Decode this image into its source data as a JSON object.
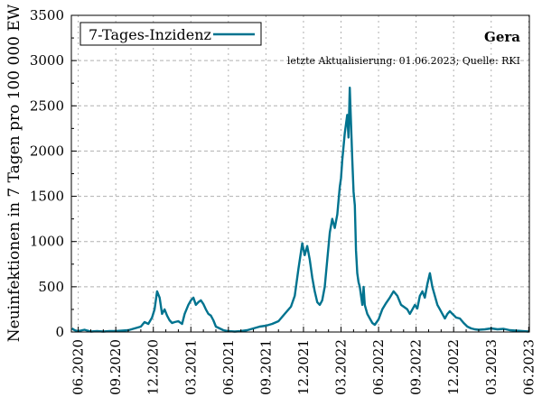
{
  "colors": {
    "series": "#00738f",
    "grid": "#b0b0b0",
    "axis": "#000000"
  },
  "chart_data": {
    "type": "line",
    "title": "Gera",
    "subtitle": "letzte Aktualisierung: 01.06.2023; Quelle: RKI",
    "xlabel": "",
    "ylabel": "Neuinfektionen in 7 Tagen pro 100 000 EW",
    "ylim": [
      0,
      3500
    ],
    "yticks": [
      0,
      500,
      1000,
      1500,
      2000,
      2500,
      3000,
      3500
    ],
    "xlim": [
      -0.55,
      36.05
    ],
    "xtick_labels": [
      "06.2020",
      "09.2020",
      "12.2020",
      "03.2021",
      "06.2021",
      "09.2021",
      "12.2021",
      "03.2022",
      "06.2022",
      "09.2022",
      "12.2022",
      "03.2023",
      "06.2023"
    ],
    "xtick_positions": [
      0,
      3,
      6,
      9,
      12,
      15,
      18,
      21,
      24,
      27,
      30,
      33,
      36
    ],
    "x_unit": "months since 06.2020",
    "legend": {
      "position": "top-left",
      "entries": [
        "7-Tages-Inzidenz"
      ]
    },
    "grid": true,
    "series": [
      {
        "name": "7-Tages-Inzidenz",
        "x": [
          -0.5,
          -0.3,
          0,
          0.5,
          1,
          1.5,
          2,
          2.5,
          3,
          3.5,
          4,
          4.5,
          5,
          5.3,
          5.6,
          5.9,
          6.1,
          6.3,
          6.5,
          6.7,
          6.9,
          7.1,
          7.3,
          7.5,
          7.7,
          8.0,
          8.3,
          8.5,
          8.8,
          9.0,
          9.2,
          9.4,
          9.6,
          9.8,
          10.0,
          10.2,
          10.4,
          10.6,
          10.8,
          11.0,
          11.3,
          11.6,
          12.0,
          12.5,
          13.0,
          13.5,
          14.0,
          14.5,
          15.0,
          15.5,
          16.0,
          16.5,
          17.0,
          17.3,
          17.6,
          17.9,
          18.1,
          18.3,
          18.5,
          18.7,
          18.9,
          19.1,
          19.3,
          19.5,
          19.7,
          19.9,
          20.1,
          20.3,
          20.5,
          20.7,
          20.9,
          21.0,
          21.1,
          21.3,
          21.5,
          21.6,
          21.7,
          21.8,
          21.9,
          22.0,
          22.1,
          22.2,
          22.3,
          22.4,
          22.5,
          22.6,
          22.7,
          22.8,
          22.9,
          23.0,
          23.1,
          23.3,
          23.5,
          23.7,
          24.0,
          24.3,
          24.6,
          24.9,
          25.2,
          25.5,
          25.8,
          26.1,
          26.3,
          26.5,
          26.7,
          26.9,
          27.1,
          27.3,
          27.5,
          27.7,
          27.9,
          28.1,
          28.3,
          28.5,
          28.7,
          28.9,
          29.1,
          29.3,
          29.5,
          29.7,
          29.9,
          30.2,
          30.5,
          30.8,
          31.1,
          31.4,
          31.7,
          32.0,
          32.5,
          33.0,
          33.5,
          34.0,
          34.5,
          35.0,
          35.5,
          36.0
        ],
        "y": [
          40,
          20,
          10,
          25,
          5,
          10,
          5,
          10,
          10,
          15,
          20,
          40,
          60,
          110,
          90,
          160,
          250,
          450,
          380,
          200,
          250,
          180,
          130,
          100,
          110,
          120,
          90,
          200,
          300,
          350,
          380,
          300,
          330,
          350,
          310,
          250,
          200,
          180,
          130,
          60,
          40,
          20,
          10,
          5,
          10,
          20,
          40,
          60,
          70,
          90,
          120,
          200,
          280,
          400,
          700,
          980,
          850,
          950,
          800,
          600,
          450,
          330,
          300,
          350,
          500,
          800,
          1100,
          1250,
          1150,
          1300,
          1600,
          1700,
          1900,
          2200,
          2400,
          2150,
          2700,
          2300,
          1900,
          1550,
          1400,
          900,
          650,
          550,
          500,
          400,
          300,
          500,
          300,
          250,
          200,
          150,
          100,
          80,
          140,
          250,
          320,
          380,
          450,
          400,
          300,
          270,
          250,
          200,
          250,
          300,
          260,
          400,
          450,
          380,
          530,
          650,
          500,
          400,
          300,
          250,
          200,
          150,
          200,
          230,
          200,
          160,
          150,
          100,
          60,
          40,
          30,
          25,
          30,
          40,
          30,
          35,
          20,
          15,
          10,
          5
        ]
      }
    ]
  }
}
